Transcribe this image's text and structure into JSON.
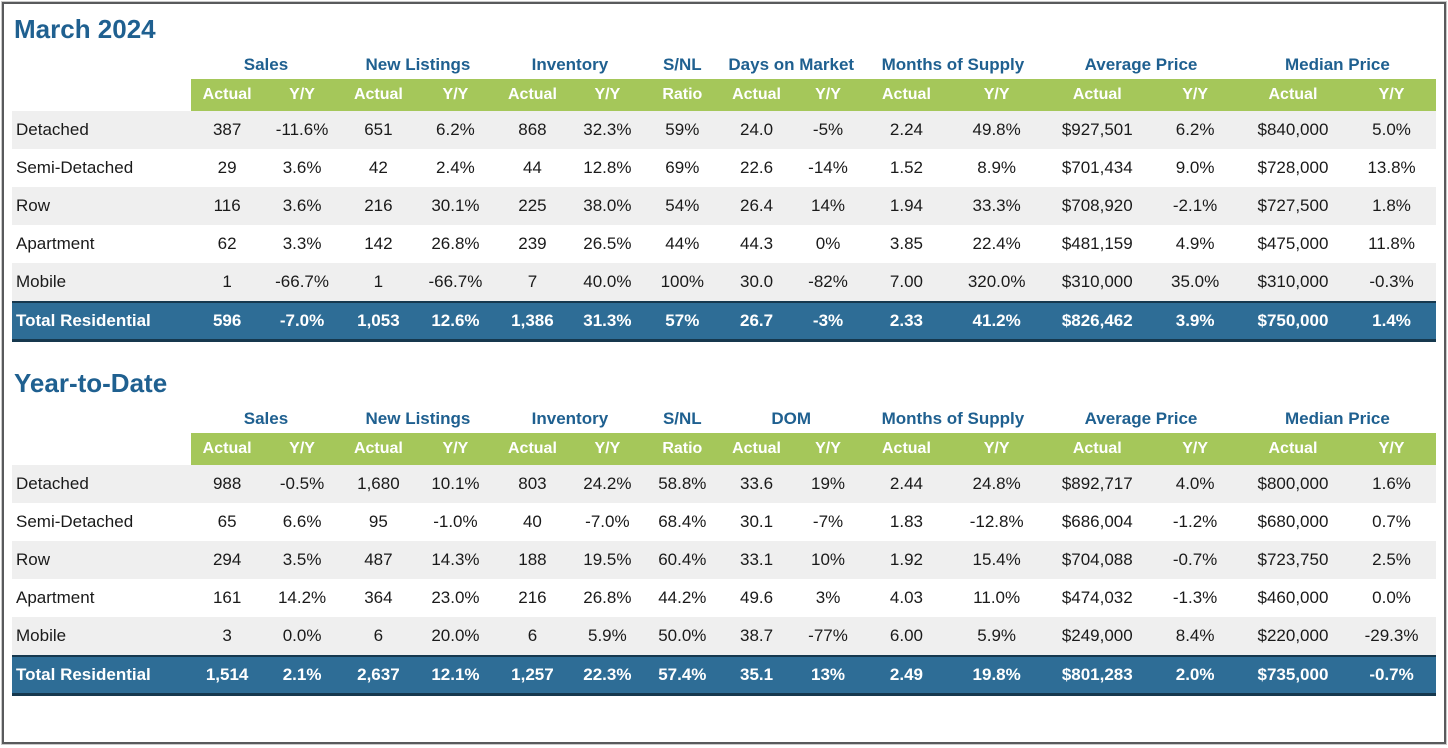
{
  "tables": [
    {
      "title": "March 2024",
      "groups": [
        {
          "label": "Sales",
          "span": 2
        },
        {
          "label": "New Listings",
          "span": 2
        },
        {
          "label": "Inventory",
          "span": 2
        },
        {
          "label": "S/NL",
          "span": 1
        },
        {
          "label": "Days on Market",
          "span": 2
        },
        {
          "label": "Months of Supply",
          "span": 2
        },
        {
          "label": "Average Price",
          "span": 2
        },
        {
          "label": "Median Price",
          "span": 2
        }
      ],
      "subheaders": [
        "Actual",
        "Y/Y",
        "Actual",
        "Y/Y",
        "Actual",
        "Y/Y",
        "Ratio",
        "Actual",
        "Y/Y",
        "Actual",
        "Y/Y",
        "Actual",
        "Y/Y",
        "Actual",
        "Y/Y"
      ],
      "rows": [
        {
          "label": "Detached",
          "values": [
            "387",
            "-11.6%",
            "651",
            "6.2%",
            "868",
            "32.3%",
            "59%",
            "24.0",
            "-5%",
            "2.24",
            "49.8%",
            "$927,501",
            "6.2%",
            "$840,000",
            "5.0%"
          ]
        },
        {
          "label": "Semi-Detached",
          "values": [
            "29",
            "3.6%",
            "42",
            "2.4%",
            "44",
            "12.8%",
            "69%",
            "22.6",
            "-14%",
            "1.52",
            "8.9%",
            "$701,434",
            "9.0%",
            "$728,000",
            "13.8%"
          ]
        },
        {
          "label": "Row",
          "values": [
            "116",
            "3.6%",
            "216",
            "30.1%",
            "225",
            "38.0%",
            "54%",
            "26.4",
            "14%",
            "1.94",
            "33.3%",
            "$708,920",
            "-2.1%",
            "$727,500",
            "1.8%"
          ]
        },
        {
          "label": "Apartment",
          "values": [
            "62",
            "3.3%",
            "142",
            "26.8%",
            "239",
            "26.5%",
            "44%",
            "44.3",
            "0%",
            "3.85",
            "22.4%",
            "$481,159",
            "4.9%",
            "$475,000",
            "11.8%"
          ]
        },
        {
          "label": "Mobile",
          "values": [
            "1",
            "-66.7%",
            "1",
            "-66.7%",
            "7",
            "40.0%",
            "100%",
            "30.0",
            "-82%",
            "7.00",
            "320.0%",
            "$310,000",
            "35.0%",
            "$310,000",
            "-0.3%"
          ]
        }
      ],
      "total": {
        "label": "Total Residential",
        "values": [
          "596",
          "-7.0%",
          "1,053",
          "12.6%",
          "1,386",
          "31.3%",
          "57%",
          "26.7",
          "-3%",
          "2.33",
          "41.2%",
          "$826,462",
          "3.9%",
          "$750,000",
          "1.4%"
        ]
      }
    },
    {
      "title": "Year-to-Date",
      "groups": [
        {
          "label": "Sales",
          "span": 2
        },
        {
          "label": "New Listings",
          "span": 2
        },
        {
          "label": "Inventory",
          "span": 2
        },
        {
          "label": "S/NL",
          "span": 1
        },
        {
          "label": "DOM",
          "span": 2
        },
        {
          "label": "Months of Supply",
          "span": 2
        },
        {
          "label": "Average Price",
          "span": 2
        },
        {
          "label": "Median Price",
          "span": 2
        }
      ],
      "subheaders": [
        "Actual",
        "Y/Y",
        "Actual",
        "Y/Y",
        "Actual",
        "Y/Y",
        "Ratio",
        "Actual",
        "Y/Y",
        "Actual",
        "Y/Y",
        "Actual",
        "Y/Y",
        "Actual",
        "Y/Y"
      ],
      "rows": [
        {
          "label": "Detached",
          "values": [
            "988",
            "-0.5%",
            "1,680",
            "10.1%",
            "803",
            "24.2%",
            "58.8%",
            "33.6",
            "19%",
            "2.44",
            "24.8%",
            "$892,717",
            "4.0%",
            "$800,000",
            "1.6%"
          ]
        },
        {
          "label": "Semi-Detached",
          "values": [
            "65",
            "6.6%",
            "95",
            "-1.0%",
            "40",
            "-7.0%",
            "68.4%",
            "30.1",
            "-7%",
            "1.83",
            "-12.8%",
            "$686,004",
            "-1.2%",
            "$680,000",
            "0.7%"
          ]
        },
        {
          "label": "Row",
          "values": [
            "294",
            "3.5%",
            "487",
            "14.3%",
            "188",
            "19.5%",
            "60.4%",
            "33.1",
            "10%",
            "1.92",
            "15.4%",
            "$704,088",
            "-0.7%",
            "$723,750",
            "2.5%"
          ]
        },
        {
          "label": "Apartment",
          "values": [
            "161",
            "14.2%",
            "364",
            "23.0%",
            "216",
            "26.8%",
            "44.2%",
            "49.6",
            "3%",
            "4.03",
            "11.0%",
            "$474,032",
            "-1.3%",
            "$460,000",
            "0.0%"
          ]
        },
        {
          "label": "Mobile",
          "values": [
            "3",
            "0.0%",
            "6",
            "20.0%",
            "6",
            "5.9%",
            "50.0%",
            "38.7",
            "-77%",
            "6.00",
            "5.9%",
            "$249,000",
            "8.4%",
            "$220,000",
            "-29.3%"
          ]
        }
      ],
      "total": {
        "label": "Total Residential",
        "values": [
          "1,514",
          "2.1%",
          "2,637",
          "12.1%",
          "1,257",
          "22.3%",
          "57.4%",
          "35.1",
          "13%",
          "2.49",
          "19.8%",
          "$801,283",
          "2.0%",
          "$735,000",
          "-0.7%"
        ]
      }
    }
  ],
  "colors": {
    "heading_blue": "#1f6090",
    "subhead_green": "#a5c75a",
    "total_row_blue": "#2e6d96",
    "stripe_gray": "#efefef"
  }
}
